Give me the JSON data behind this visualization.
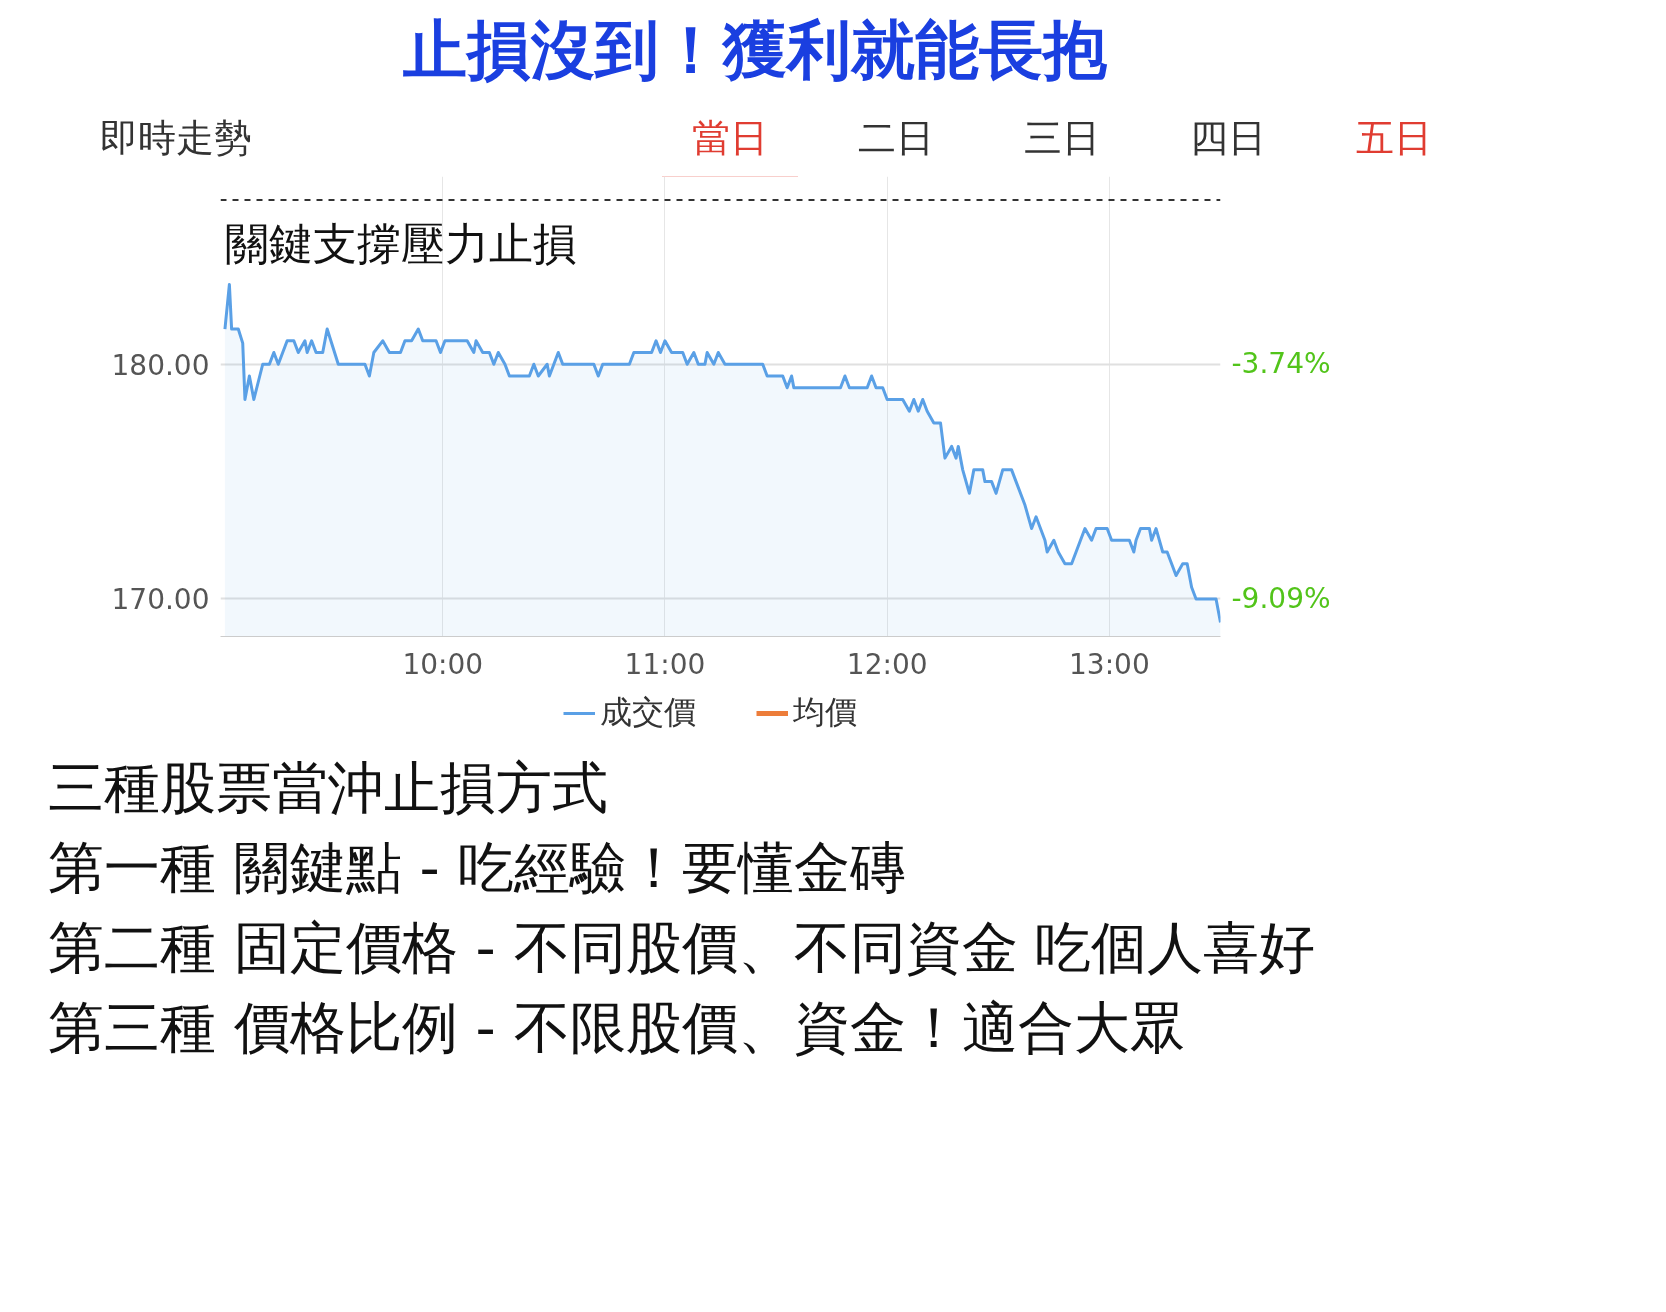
{
  "chart_data": {
    "type": "area",
    "title": "止損沒到！獲利就能長抱",
    "annotations": [
      "即時走勢",
      "當日",
      "二日",
      "三日",
      "四日",
      "五日",
      "關鍵支撐壓力止損",
      "三種股票當沖止損方式",
      "第一種 關鍵點 - 吃經驗！要懂金磚",
      "第二種 固定價格 - 不同股價、不同資金 吃個人喜好",
      "第三種 價格比例 - 不限股價、資金！適合大眾"
    ],
    "xlim": [
      9,
      13.5
    ],
    "xticks": [
      {
        "value": 10,
        "label": "10:00"
      },
      {
        "value": 11,
        "label": "11:00"
      },
      {
        "value": 12,
        "label": "12:00"
      },
      {
        "value": 13,
        "label": "13:00"
      }
    ],
    "ylim": [
      168.4,
      188
    ],
    "yticks": [
      {
        "value": 170,
        "label": "170.00"
      },
      {
        "value": 180,
        "label": "180.00"
      }
    ],
    "y2lim": [
      -9.95,
      0.53
    ],
    "y2ticks": [
      {
        "value": -9.09,
        "label": "-9.09%"
      },
      {
        "value": -3.74,
        "label": "-3.74%"
      }
    ],
    "grid": true,
    "legend": "bottom",
    "marker": "none",
    "line_style": "solid",
    "ref_lines": [
      {
        "axis": "y",
        "value": 187,
        "color": "#333333",
        "line_style": "dashed"
      }
    ],
    "series": [
      {
        "name": "成交價",
        "color": "#5aa0e6",
        "x": [
          9.02,
          9.04,
          9.05,
          9.08,
          9.1,
          9.11,
          9.13,
          9.15,
          9.19,
          9.22,
          9.24,
          9.26,
          9.28,
          9.3,
          9.33,
          9.35,
          9.38,
          9.39,
          9.41,
          9.43,
          9.46,
          9.48,
          9.53,
          9.65,
          9.67,
          9.69,
          9.73,
          9.76,
          9.81,
          9.83,
          9.86,
          9.89,
          9.91,
          9.97,
          9.99,
          10.01,
          10.11,
          10.14,
          10.15,
          10.18,
          10.21,
          10.23,
          10.25,
          10.28,
          10.3,
          10.39,
          10.41,
          10.43,
          10.47,
          10.48,
          10.5,
          10.52,
          10.54,
          10.68,
          10.7,
          10.72,
          10.84,
          10.86,
          10.94,
          10.96,
          10.98,
          11.0,
          11.03,
          11.08,
          11.1,
          11.13,
          11.15,
          11.18,
          11.19,
          11.22,
          11.24,
          11.27,
          11.44,
          11.46,
          11.53,
          11.55,
          11.57,
          11.58,
          11.79,
          11.81,
          11.83,
          11.91,
          11.93,
          11.95,
          11.98,
          12.0,
          12.07,
          12.1,
          12.12,
          12.14,
          12.16,
          12.18,
          12.21,
          12.24,
          12.26,
          12.29,
          12.31,
          12.32,
          12.34,
          12.37,
          12.39,
          12.43,
          12.44,
          12.47,
          12.49,
          12.52,
          12.56,
          12.58,
          12.62,
          12.65,
          12.67,
          12.71,
          12.72,
          12.75,
          12.77,
          12.8,
          12.83,
          12.85,
          12.87,
          12.89,
          12.92,
          12.94,
          12.99,
          13.01,
          13.09,
          13.11,
          13.12,
          13.14,
          13.18,
          13.19,
          13.21,
          13.24,
          13.26,
          13.28,
          13.3,
          13.33,
          13.35,
          13.37,
          13.39,
          13.48,
          13.5
        ],
        "values": [
          181.5,
          183.4,
          181.5,
          181.5,
          180.9,
          178.5,
          179.5,
          178.5,
          180,
          180,
          180.5,
          180,
          180.5,
          181,
          181,
          180.5,
          181,
          180.5,
          181,
          180.5,
          180.5,
          181.5,
          180,
          180,
          179.5,
          180.5,
          181,
          180.5,
          180.5,
          181,
          181,
          181.5,
          181,
          181,
          180.5,
          181,
          181,
          180.5,
          181,
          180.5,
          180.5,
          180,
          180.5,
          180,
          179.5,
          179.5,
          180,
          179.5,
          180,
          179.5,
          180,
          180.5,
          180,
          180,
          179.5,
          180,
          180,
          180.5,
          180.5,
          181,
          180.5,
          181,
          180.5,
          180.5,
          180,
          180.5,
          180,
          180,
          180.5,
          180,
          180.5,
          180,
          180,
          179.5,
          179.5,
          179,
          179.5,
          179,
          179,
          179.5,
          179,
          179,
          179.5,
          179,
          179,
          178.5,
          178.5,
          178,
          178.5,
          178,
          178.5,
          178,
          177.5,
          177.5,
          176,
          176.5,
          176,
          176.5,
          175.5,
          174.5,
          175.5,
          175.5,
          175,
          175,
          174.5,
          175.5,
          175.5,
          175,
          174,
          173,
          173.5,
          172.5,
          172,
          172.5,
          172,
          171.5,
          171.5,
          172,
          172.5,
          173,
          172.5,
          173,
          173,
          172.5,
          172.5,
          172,
          172.5,
          173,
          173,
          172.5,
          173,
          172,
          172,
          171.5,
          171,
          171.5,
          171.5,
          170.5,
          170,
          170,
          169
        ]
      },
      {
        "name": "均價",
        "color": "#ed7d3a",
        "type": "line"
      }
    ]
  }
}
